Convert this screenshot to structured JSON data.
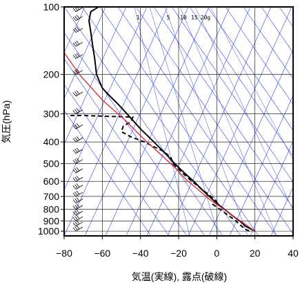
{
  "chart_data": {
    "type": "line",
    "title": "",
    "xlabel": "気温(実線), 露点(破線)",
    "ylabel": "気圧(hPa)",
    "xlim": [
      -80,
      40
    ],
    "ylim": [
      1050,
      100
    ],
    "y_scale": "log",
    "x_ticks": [
      "−80",
      "−60",
      "−40",
      "−20",
      "0",
      "20",
      "40"
    ],
    "y_ticks": [
      {
        "p": 100,
        "label": "100"
      },
      {
        "p": 200,
        "label": "200"
      },
      {
        "p": 300,
        "label": "300"
      },
      {
        "p": 400,
        "label": "400"
      },
      {
        "p": 500,
        "label": "500"
      },
      {
        "p": 600,
        "label": "600"
      },
      {
        "p": 700,
        "label": "700"
      },
      {
        "p": 800,
        "label": "800"
      },
      {
        "p": 900,
        "label": "900"
      },
      {
        "p": 1000,
        "label": "1000"
      }
    ],
    "mixing_ratio_labels": [
      "1",
      "5",
      "10",
      "15",
      "20g"
    ],
    "colors": {
      "temperature": "#000000",
      "dewpoint": "#000000",
      "parcel": "#cc3344",
      "guides": "#3344dd",
      "grid": "#000000"
    },
    "series": [
      {
        "style": "solid",
        "points": [
          [
            20,
            1000
          ],
          [
            15,
            950
          ],
          [
            12,
            900
          ],
          [
            8,
            850
          ],
          [
            4,
            800
          ],
          [
            0,
            750
          ],
          [
            -4,
            700
          ],
          [
            -8,
            650
          ],
          [
            -12,
            600
          ],
          [
            -17,
            550
          ],
          [
            -22,
            500
          ],
          [
            -27,
            450
          ],
          [
            -33,
            400
          ],
          [
            -40,
            350
          ],
          [
            -47,
            300
          ],
          [
            -52,
            270
          ],
          [
            -56,
            250
          ],
          [
            -60,
            230
          ],
          [
            -62,
            210
          ],
          [
            -63,
            200
          ],
          [
            -64,
            170
          ],
          [
            -65,
            150
          ],
          [
            -66,
            130
          ],
          [
            -67,
            115
          ],
          [
            -66,
            105
          ],
          [
            -62,
            100
          ]
        ]
      },
      {
        "style": "dashed",
        "points": [
          [
            17,
            1000
          ],
          [
            15,
            980
          ],
          [
            13,
            950
          ],
          [
            10,
            900
          ],
          [
            6,
            850
          ],
          [
            0,
            780
          ],
          [
            -2,
            760
          ],
          [
            0,
            740
          ],
          [
            -3,
            700
          ],
          [
            -8,
            650
          ],
          [
            -13,
            600
          ],
          [
            -18,
            550
          ],
          [
            -23,
            500
          ],
          [
            -24,
            470
          ],
          [
            -28,
            440
          ],
          [
            -33,
            420
          ],
          [
            -38,
            400
          ],
          [
            -45,
            380
          ],
          [
            -50,
            360
          ],
          [
            -49,
            340
          ],
          [
            -45,
            325
          ],
          [
            -44,
            310
          ],
          [
            -70,
            305
          ],
          [
            -78,
            305
          ]
        ]
      },
      {
        "style": "solid",
        "points": [
          [
            20,
            1000
          ],
          [
            14,
            920
          ],
          [
            8,
            850
          ],
          [
            2,
            780
          ],
          [
            -4,
            720
          ],
          [
            -10,
            650
          ],
          [
            -16,
            590
          ],
          [
            -22,
            520
          ],
          [
            -30,
            450
          ],
          [
            -38,
            390
          ],
          [
            -48,
            320
          ],
          [
            -60,
            260
          ],
          [
            -72,
            200
          ],
          [
            -80,
            160
          ]
        ]
      }
    ],
    "wind_barbs": [
      {
        "p": 1000
      },
      {
        "p": 950
      },
      {
        "p": 900
      },
      {
        "p": 850
      },
      {
        "p": 800
      },
      {
        "p": 750
      },
      {
        "p": 700
      },
      {
        "p": 650
      },
      {
        "p": 600
      },
      {
        "p": 550
      },
      {
        "p": 500
      },
      {
        "p": 450
      },
      {
        "p": 400
      },
      {
        "p": 350
      },
      {
        "p": 300
      },
      {
        "p": 250
      },
      {
        "p": 200
      },
      {
        "p": 170
      },
      {
        "p": 150
      },
      {
        "p": 130
      },
      {
        "p": 115
      },
      {
        "p": 105
      }
    ]
  }
}
